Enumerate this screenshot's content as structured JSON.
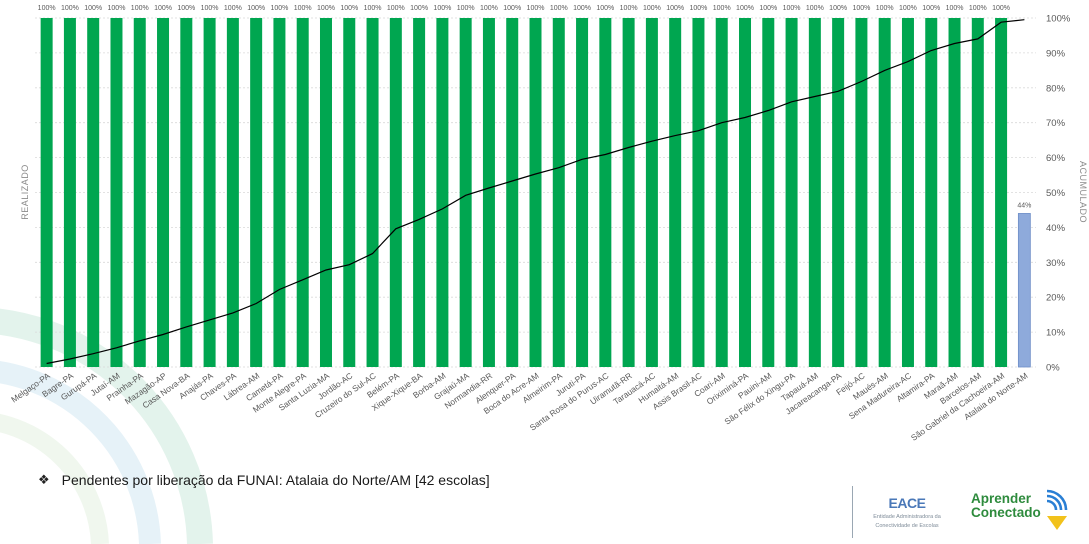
{
  "chart_data": {
    "type": "bar+line",
    "categories": [
      "Melgaço-PA",
      "Bagre-PA",
      "Gurupá-PA",
      "Jutaí-AM",
      "Prainha-PA",
      "Mazagão-AP",
      "Casa Nova-BA",
      "Anajás-PA",
      "Chaves-PA",
      "Lábrea-AM",
      "Cametá-PA",
      "Monte Alegre-PA",
      "Santa Luzia-MA",
      "Jordão-AC",
      "Cruzeiro do Sul-AC",
      "Belém-PA",
      "Xique-Xique-BA",
      "Borba-AM",
      "Grajaú-MA",
      "Normandia-RR",
      "Alenquer-PA",
      "Boca do Acre-AM",
      "Almeirim-PA",
      "Juruti-PA",
      "Santa Rosa do Purus-AC",
      "Uiramutã-RR",
      "Tarauacá-AC",
      "Humaitá-AM",
      "Assis Brasil-AC",
      "Coari-AM",
      "Oriximiná-PA",
      "Pauini-AM",
      "São Félix do Xingu-PA",
      "Tapauá-AM",
      "Jacareacanga-PA",
      "Feijó-AC",
      "Maués-AM",
      "Sena Madureira-AC",
      "Altamira-PA",
      "Maraã-AM",
      "Barcelos-AM",
      "São Gabriel da Cachoeira-AM",
      "Atalaia do Norte-AM"
    ],
    "series": [
      {
        "name": "REALIZADO",
        "kind": "bar",
        "values": [
          100,
          100,
          100,
          100,
          100,
          100,
          100,
          100,
          100,
          100,
          100,
          100,
          100,
          100,
          100,
          100,
          100,
          100,
          100,
          100,
          100,
          100,
          100,
          100,
          100,
          100,
          100,
          100,
          100,
          100,
          100,
          100,
          100,
          100,
          100,
          100,
          100,
          100,
          100,
          100,
          100,
          100,
          44
        ],
        "data_labels": [
          "100%",
          "100%",
          "100%",
          "100%",
          "100%",
          "100%",
          "100%",
          "100%",
          "100%",
          "100%",
          "100%",
          "100%",
          "100%",
          "100%",
          "100%",
          "100%",
          "100%",
          "100%",
          "100%",
          "100%",
          "100%",
          "100%",
          "100%",
          "100%",
          "100%",
          "100%",
          "100%",
          "100%",
          "100%",
          "100%",
          "100%",
          "100%",
          "100%",
          "100%",
          "100%",
          "100%",
          "100%",
          "100%",
          "100%",
          "100%",
          "100%",
          "100%",
          "44%"
        ],
        "color": "#00a650",
        "highlight_color": "#8eaadb"
      },
      {
        "name": "ACUMULADO",
        "kind": "line",
        "values": [
          1,
          2.3,
          3.8,
          5.5,
          7.5,
          9.3,
          11.5,
          13.5,
          15.5,
          18.2,
          22.2,
          25,
          27.8,
          29.3,
          32.5,
          39.6,
          42.3,
          45.3,
          49.2,
          51.3,
          53.3,
          55.3,
          57.1,
          59.5,
          60.9,
          62.9,
          64.7,
          66.3,
          67.7,
          70,
          71.5,
          73.5,
          76,
          77.5,
          79,
          81.8,
          85,
          87.5,
          90.7,
          92.7,
          94,
          98.8,
          99.5
        ],
        "color": "#000000"
      }
    ],
    "ylabel_left": "REALIZADO",
    "ylabel_right": "ACUMULADO",
    "ylim": [
      0,
      100
    ],
    "right_ticks": [
      "0%",
      "10%",
      "20%",
      "30%",
      "40%",
      "50%",
      "60%",
      "70%",
      "80%",
      "90%",
      "100%"
    ],
    "gridlines": true
  },
  "note": {
    "bullet": "❖",
    "text": "Pendentes por liberação da FUNAI:  Atalaia do Norte/AM [42 escolas]"
  },
  "logos": {
    "eace_title": "EACE",
    "eace_sub1": "Entidade Administradora da",
    "eace_sub2": "Conectividade de Escolas",
    "aprender_line1": "Aprender",
    "aprender_line2": "Conectado"
  }
}
